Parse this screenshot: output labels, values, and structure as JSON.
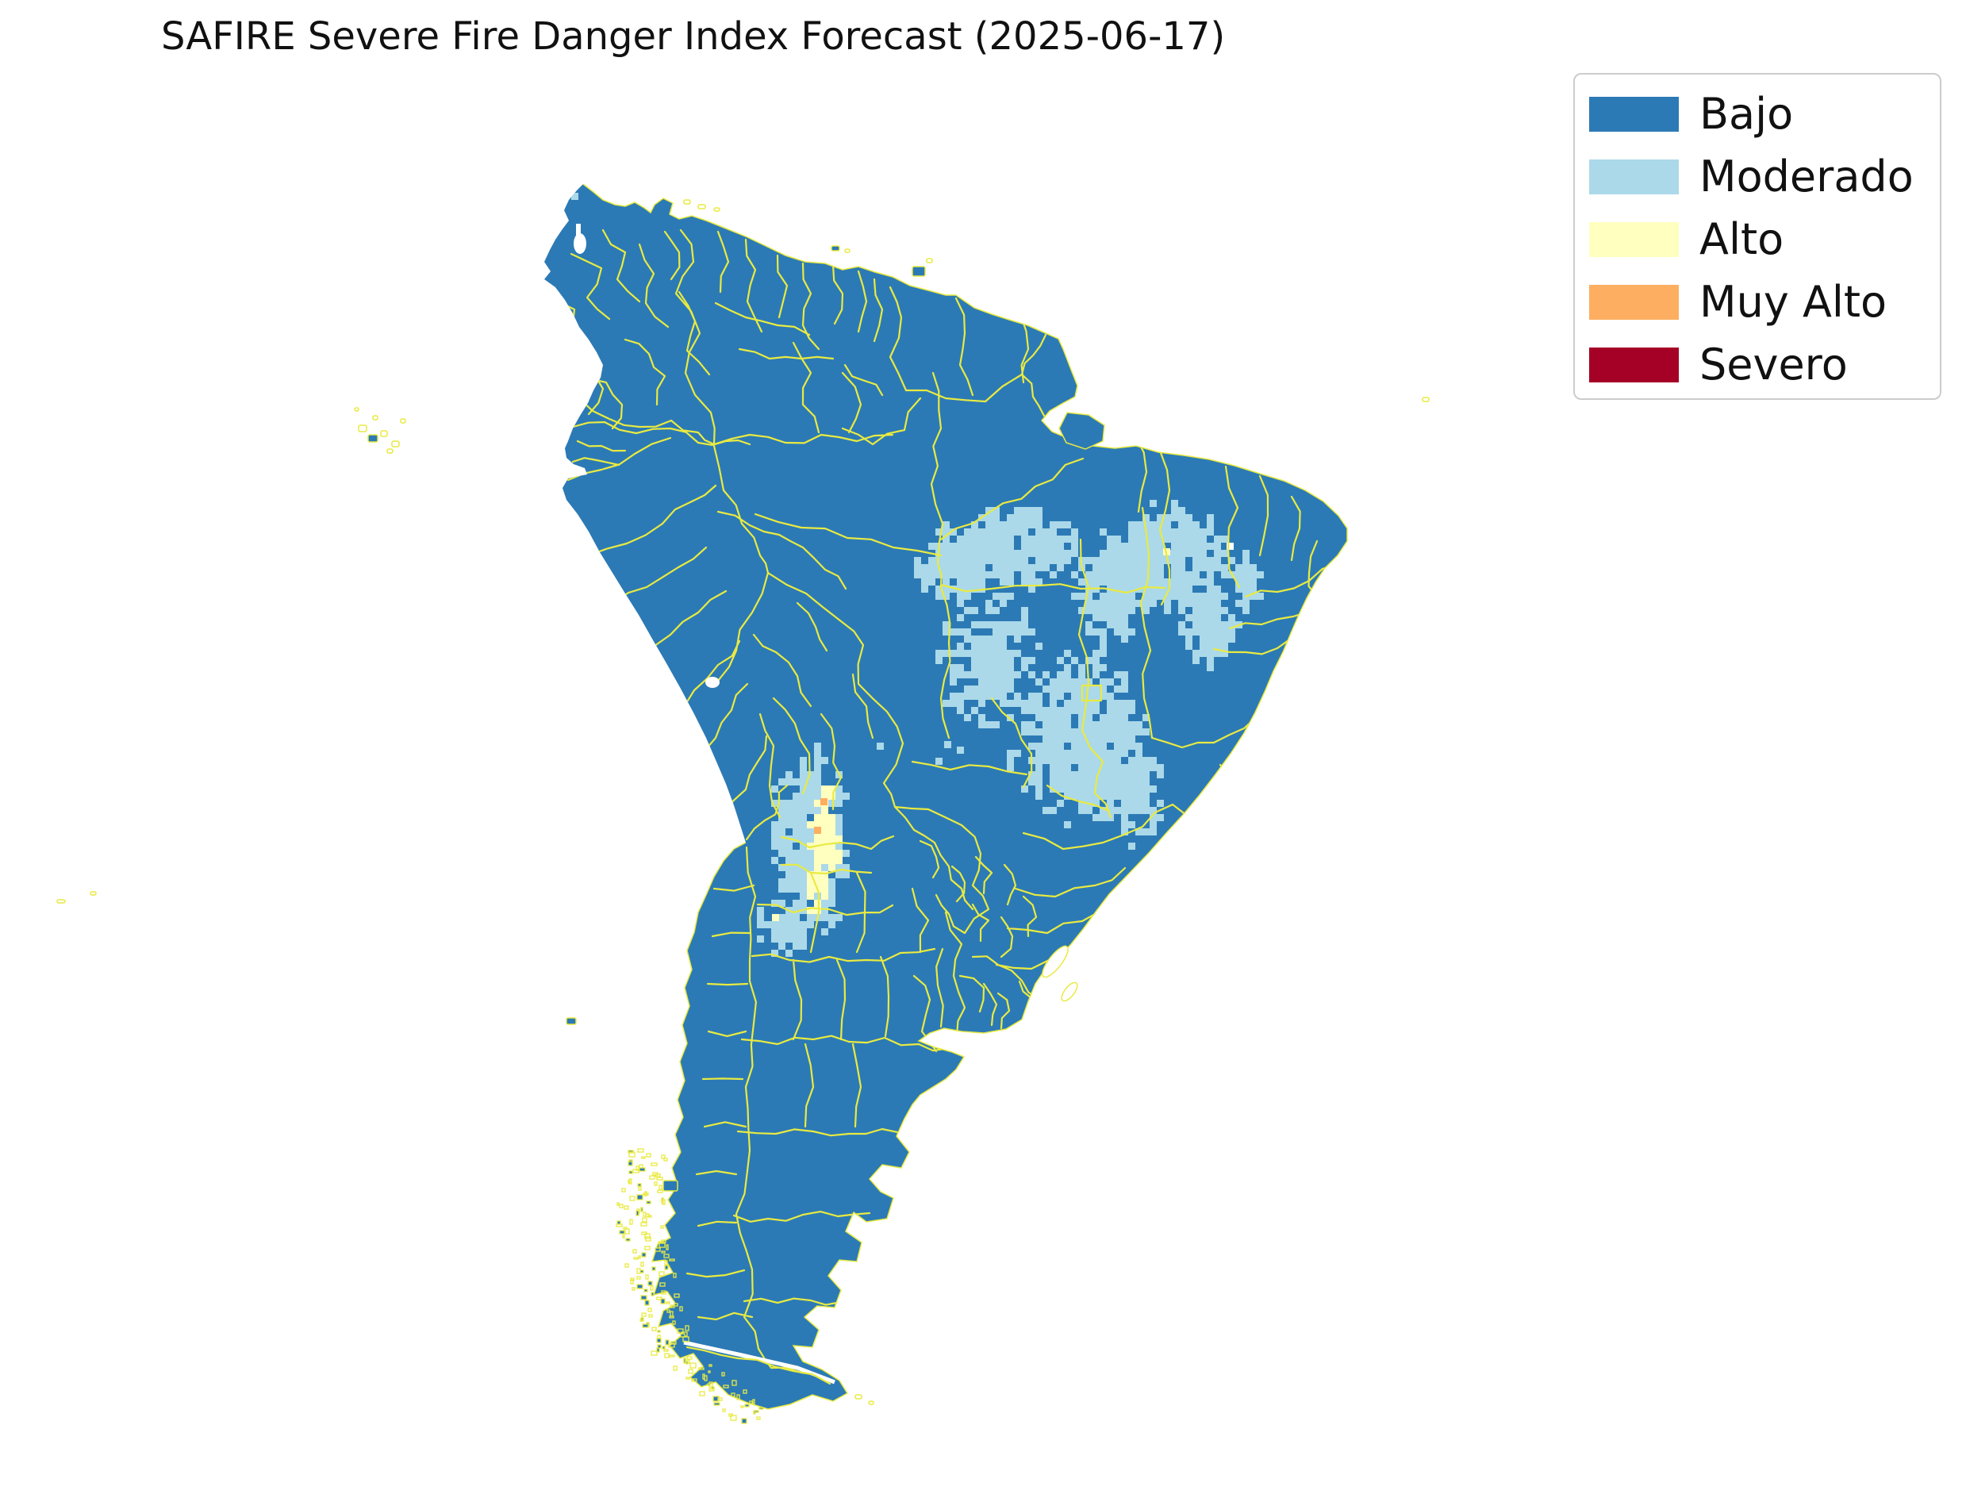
{
  "title": "SAFIRE Severe Fire Danger Index Forecast (2025-06-17)",
  "legend": {
    "items": [
      {
        "label": "Bajo",
        "color": "#2c7ab5"
      },
      {
        "label": "Moderado",
        "color": "#abd9e9"
      },
      {
        "label": "Alto",
        "color": "#ffffbf"
      },
      {
        "label": "Muy Alto",
        "color": "#fdae61"
      },
      {
        "label": "Severo",
        "color": "#a50026"
      }
    ]
  },
  "map": {
    "region": "South America",
    "background_color": "#ffffff",
    "colors": {
      "bajo": "#2c7ab5",
      "moderado": "#abd9e9",
      "alto": "#ffffbf",
      "muy_alto": "#fdae61",
      "severo": "#a50026",
      "admin_boundary": "#e9ea41",
      "no_data": "#ffffff"
    },
    "levels_shown_on_map": {
      "bajo": "dominant level covering most of the continent",
      "moderado": [
        "central-eastern Brazil belt (Tocantins, western Bahia, Goias, Minas Gerais)",
        "Andean strip across southern Bolivia and northwest Argentina"
      ],
      "alto": [
        "core cells of the Andean strip in S Bolivia / NW Argentina",
        "one isolated cell in northeast Brazil"
      ],
      "muy_alto": [
        "two isolated cells inside the Andean strip"
      ],
      "severo": []
    }
  }
}
